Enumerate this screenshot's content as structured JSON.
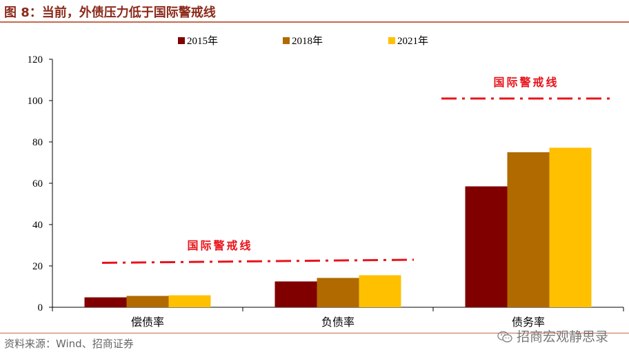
{
  "header": {
    "title": "图 8：当前，外债压力低于国际警戒线"
  },
  "footer": {
    "source": "资料来源：Wind、招商证券",
    "watermark": "招商宏观静思录",
    "watermark_icon": "wechat-icon"
  },
  "colors": {
    "accent": "#8b2a1a",
    "threshold": "#e8131a"
  },
  "chart_data": {
    "type": "bar",
    "categories": [
      "偿债率",
      "负债率",
      "债务率"
    ],
    "series": [
      {
        "name": "2015年",
        "color": "#800000",
        "values": [
          4.8,
          12.5,
          58.5
        ]
      },
      {
        "name": "2018年",
        "color": "#b06a00",
        "values": [
          5.5,
          14.2,
          75.0
        ]
      },
      {
        "name": "2021年",
        "color": "#ffc000",
        "values": [
          5.8,
          15.5,
          77.2
        ]
      }
    ],
    "ylim": [
      0,
      120
    ],
    "yticks": [
      0,
      20,
      40,
      60,
      80,
      100,
      120
    ],
    "legend_position": "top-center",
    "grid": false,
    "annotations": [
      {
        "label": "国际警戒线",
        "value_start": 21.5,
        "value_end": 23.0,
        "category_span": [
          0,
          1
        ]
      },
      {
        "label": "国际警戒线",
        "value_start": 101.0,
        "value_end": 101.0,
        "category_span": [
          2,
          2
        ]
      }
    ]
  }
}
